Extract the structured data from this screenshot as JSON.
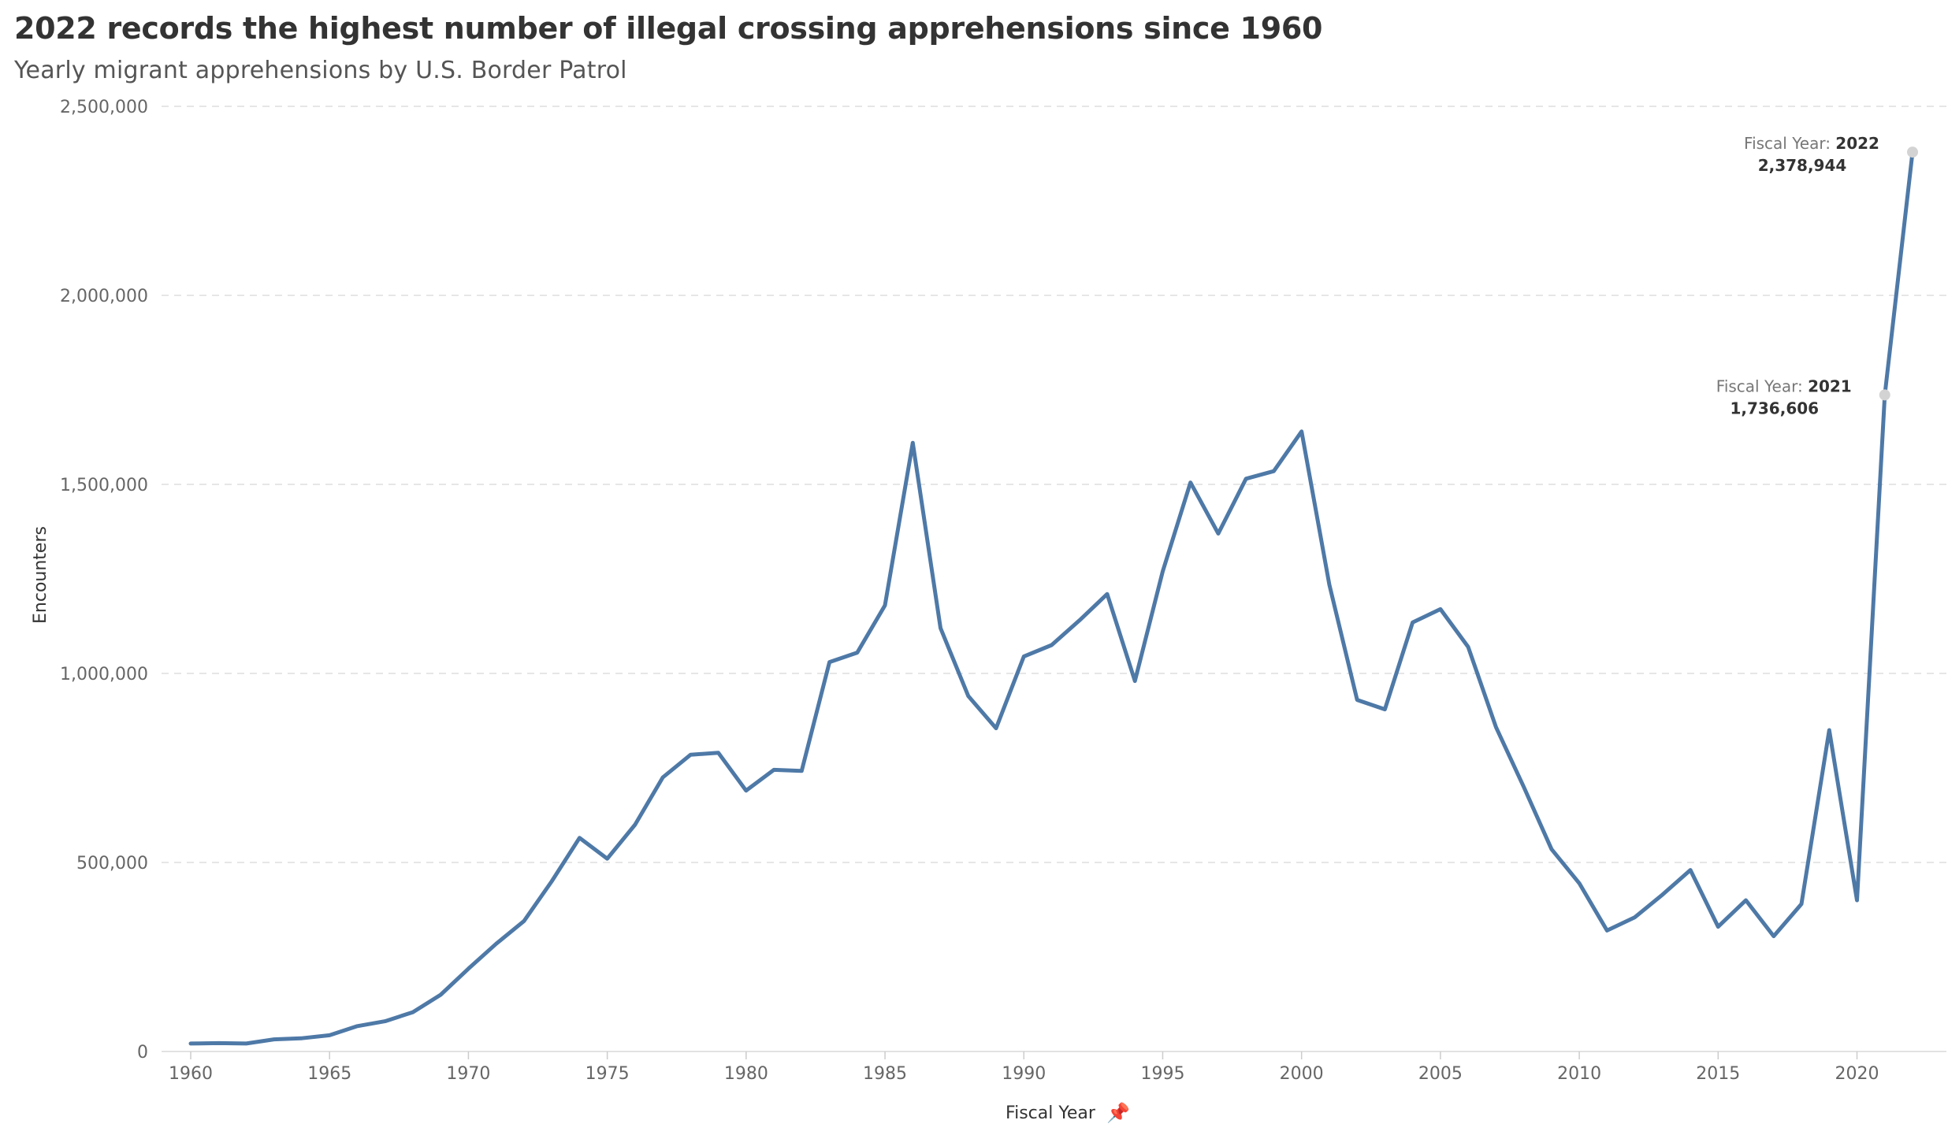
{
  "header": {
    "title": "2022 records the highest number of illegal crossing apprehensions since 1960",
    "subtitle": "Yearly migrant apprehensions by U.S. Border Patrol"
  },
  "colors": {
    "line": "#4e79a7",
    "marker": "#d3d3d3",
    "grid": "#e6e6e6"
  },
  "icons": {
    "x_axis_pin": "pin-icon"
  },
  "chart_data": {
    "type": "line",
    "title": "2022 records the highest number of illegal crossing apprehensions since 1960",
    "subtitle": "Yearly migrant apprehensions by U.S. Border Patrol",
    "xlabel": "Fiscal Year",
    "ylabel": "Encounters",
    "xlim": [
      1960,
      2022
    ],
    "ylim": [
      0,
      2500000
    ],
    "grid": true,
    "x_ticks": [
      1960,
      1965,
      1970,
      1975,
      1980,
      1985,
      1990,
      1995,
      2000,
      2005,
      2010,
      2015,
      2020
    ],
    "x_tick_labels": [
      "1960",
      "1965",
      "1970",
      "1975",
      "1980",
      "1985",
      "1990",
      "1995",
      "2000",
      "2005",
      "2010",
      "2015",
      "2020"
    ],
    "y_ticks": [
      0,
      500000,
      1000000,
      1500000,
      2000000,
      2500000
    ],
    "y_tick_labels": [
      "0",
      "500,000",
      "1,000,000",
      "1,500,000",
      "2,000,000",
      "2,500,000"
    ],
    "x": [
      1960,
      1961,
      1962,
      1963,
      1964,
      1965,
      1966,
      1967,
      1968,
      1969,
      1970,
      1971,
      1972,
      1973,
      1974,
      1975,
      1976,
      1977,
      1978,
      1979,
      1980,
      1981,
      1982,
      1983,
      1984,
      1985,
      1986,
      1987,
      1988,
      1989,
      1990,
      1991,
      1992,
      1993,
      1994,
      1995,
      1996,
      1997,
      1998,
      1999,
      2000,
      2001,
      2002,
      2003,
      2004,
      2005,
      2006,
      2007,
      2008,
      2009,
      2010,
      2011,
      2012,
      2013,
      2014,
      2015,
      2016,
      2017,
      2018,
      2019,
      2020,
      2021,
      2022
    ],
    "series": [
      {
        "values": [
          21000,
          22000,
          21000,
          32000,
          35000,
          43000,
          67000,
          80000,
          104000,
          150000,
          219000,
          285000,
          345000,
          450000,
          565000,
          510000,
          600000,
          725000,
          785000,
          790000,
          690000,
          745000,
          742000,
          1030000,
          1055000,
          1180000,
          1610000,
          1120000,
          940000,
          855000,
          1045000,
          1075000,
          1140000,
          1210000,
          980000,
          1270000,
          1505000,
          1370000,
          1515000,
          1535000,
          1640000,
          1235000,
          930000,
          905000,
          1135000,
          1170000,
          1070000,
          858000,
          700000,
          535000,
          445000,
          320000,
          355000,
          415000,
          480000,
          330000,
          400000,
          305000,
          390000,
          850000,
          400000,
          1736606,
          2378944
        ]
      }
    ],
    "annotations": [
      {
        "x": 2022,
        "label_prefix": "Fiscal Year:",
        "year": "2022",
        "value": "2,378,944"
      },
      {
        "x": 2021,
        "label_prefix": "Fiscal Year:",
        "year": "2021",
        "value": "1,736,606"
      }
    ]
  }
}
